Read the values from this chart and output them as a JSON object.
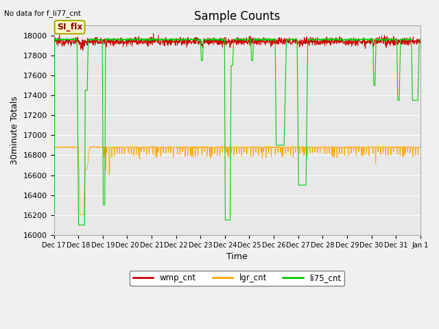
{
  "title": "Sample Counts",
  "xlabel": "Time",
  "ylabel": "30minute Totals",
  "annotation_text": "No data for f_li77_cnt",
  "annotation_box_text": "SI_flx",
  "ylim": [
    16000,
    18100
  ],
  "yticks": [
    16000,
    16200,
    16400,
    16600,
    16800,
    17000,
    17200,
    17400,
    17600,
    17800,
    18000
  ],
  "x_tick_labels": [
    "Dec 17",
    "Dec 18",
    "Dec 19",
    "Dec 20",
    "Dec 21",
    "Dec 22",
    "Dec 23",
    "Dec 24",
    "Dec 25",
    "Dec 26",
    "Dec 27",
    "Dec 28",
    "Dec 29",
    "Dec 30",
    "Dec 31",
    "Jan 1"
  ],
  "wmp_baseline": 17940,
  "lgr_baseline": 16880,
  "li75_baseline": 17960,
  "wmp_noise": 20,
  "lgr_noise": 3,
  "li75_noise": 5,
  "wmp_color": "#cc0000",
  "lgr_color": "#ffa500",
  "li75_color": "#00cc00",
  "legend_labels": [
    "wmp_cnt",
    "lgr_cnt",
    "li75_cnt"
  ],
  "fig_bg_color": "#f0f0f0",
  "plot_bg_color": "#e8e8e8",
  "grid_color": "#ffffff",
  "title_fontsize": 12,
  "axis_label_fontsize": 9,
  "tick_fontsize": 8,
  "n_points": 1440,
  "n_days": 15
}
